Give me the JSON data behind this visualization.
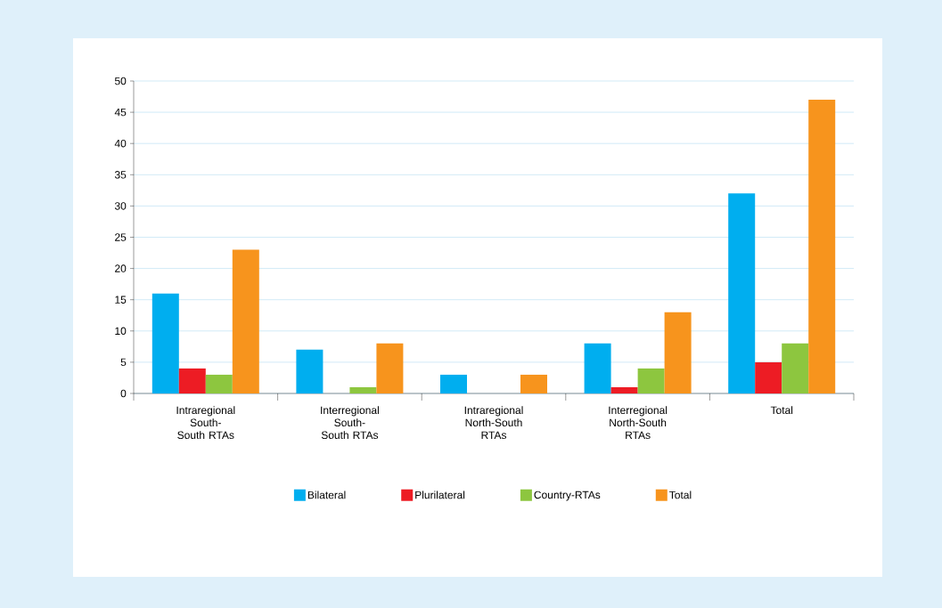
{
  "chart_data": {
    "type": "bar",
    "categories": [
      "Intraregional South-South RTAs",
      "Interregional South-South RTAs",
      "Intraregional North-South RTAs",
      "Interregional North-South RTAs",
      "Total"
    ],
    "series": [
      {
        "name": "Bilateral",
        "color": "#00aeef",
        "values": [
          16,
          7,
          3,
          8,
          32
        ]
      },
      {
        "name": "Plurilateral",
        "color": "#ed1c24",
        "values": [
          4,
          0,
          0,
          1,
          5
        ]
      },
      {
        "name": "Country-RTAs",
        "color": "#8dc63f",
        "values": [
          3,
          1,
          0,
          4,
          8
        ]
      },
      {
        "name": "Total",
        "color": "#f7941d",
        "values": [
          23,
          8,
          3,
          13,
          47
        ]
      }
    ],
    "ylim": [
      0,
      50
    ],
    "yticks": [
      0,
      5,
      10,
      15,
      20,
      25,
      30,
      35,
      40,
      45,
      50
    ],
    "grid": "y",
    "legend": "bottom"
  }
}
